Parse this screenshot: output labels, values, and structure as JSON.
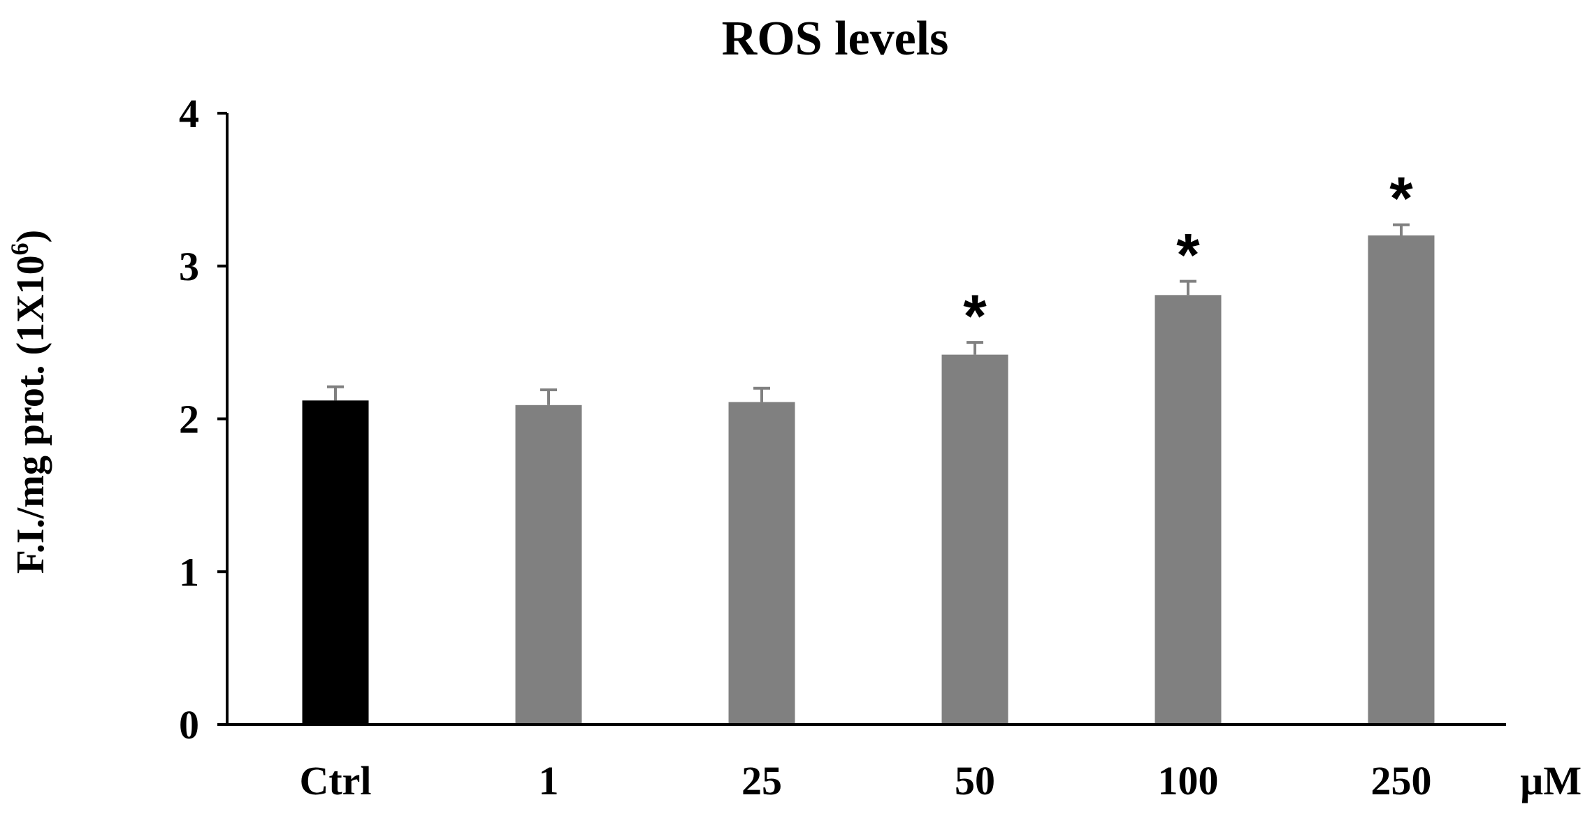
{
  "chart_data": {
    "type": "bar",
    "title": "ROS levels",
    "ylabel": "F.I./mg prot. (1X10",
    "ylabel_superscript": "6",
    "ylabel_close": ")",
    "xunit": "µM",
    "categories": [
      "Ctrl",
      "1",
      "25",
      "50",
      "100",
      "250"
    ],
    "values": [
      2.12,
      2.09,
      2.11,
      2.42,
      2.81,
      3.2
    ],
    "errors": [
      0.09,
      0.1,
      0.09,
      0.08,
      0.09,
      0.07
    ],
    "colors": [
      "#000000",
      "#808080",
      "#808080",
      "#808080",
      "#808080",
      "#808080"
    ],
    "annotations": [
      "",
      "",
      "",
      "*",
      "*",
      "*"
    ],
    "ylim": [
      0,
      4
    ],
    "yticks": [
      "0",
      "1",
      "2",
      "3",
      "4"
    ],
    "grid": false,
    "legend": "none"
  }
}
